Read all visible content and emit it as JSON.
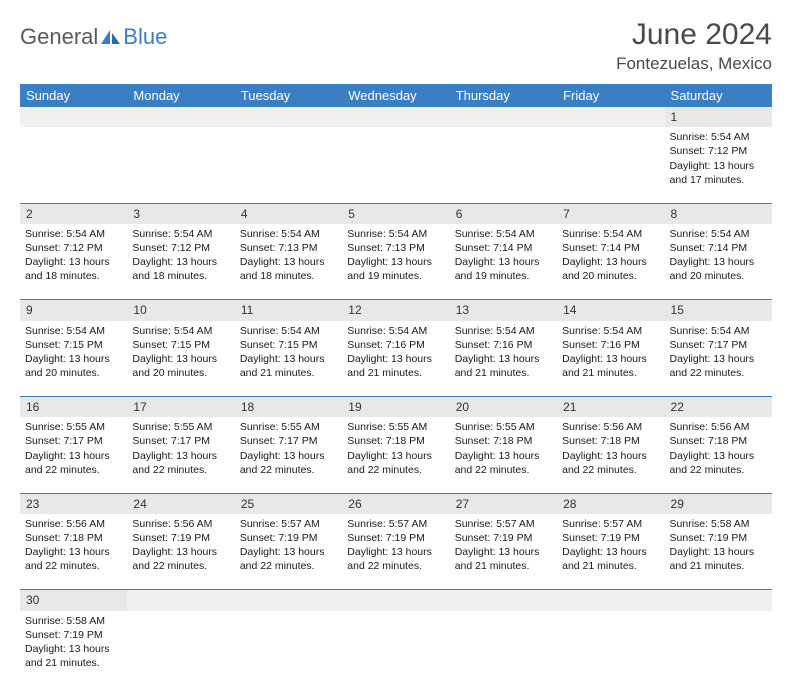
{
  "logo": {
    "textA": "General",
    "textB": "Blue"
  },
  "title": "June 2024",
  "location": "Fontezuelas, Mexico",
  "colors": {
    "header_bg": "#3a7fc4",
    "header_text": "#ffffff",
    "daynum_bg": "#e8e8e8",
    "border": "#3a7fc4",
    "logo_gray": "#5a5a5a",
    "logo_blue": "#3a7fc4",
    "title_color": "#4a4a4a"
  },
  "dayHeaders": [
    "Sunday",
    "Monday",
    "Tuesday",
    "Wednesday",
    "Thursday",
    "Friday",
    "Saturday"
  ],
  "weeks": [
    [
      null,
      null,
      null,
      null,
      null,
      null,
      {
        "n": "1",
        "sr": "5:54 AM",
        "ss": "7:12 PM",
        "dl": "13 hours and 17 minutes."
      }
    ],
    [
      {
        "n": "2",
        "sr": "5:54 AM",
        "ss": "7:12 PM",
        "dl": "13 hours and 18 minutes."
      },
      {
        "n": "3",
        "sr": "5:54 AM",
        "ss": "7:12 PM",
        "dl": "13 hours and 18 minutes."
      },
      {
        "n": "4",
        "sr": "5:54 AM",
        "ss": "7:13 PM",
        "dl": "13 hours and 18 minutes."
      },
      {
        "n": "5",
        "sr": "5:54 AM",
        "ss": "7:13 PM",
        "dl": "13 hours and 19 minutes."
      },
      {
        "n": "6",
        "sr": "5:54 AM",
        "ss": "7:14 PM",
        "dl": "13 hours and 19 minutes."
      },
      {
        "n": "7",
        "sr": "5:54 AM",
        "ss": "7:14 PM",
        "dl": "13 hours and 20 minutes."
      },
      {
        "n": "8",
        "sr": "5:54 AM",
        "ss": "7:14 PM",
        "dl": "13 hours and 20 minutes."
      }
    ],
    [
      {
        "n": "9",
        "sr": "5:54 AM",
        "ss": "7:15 PM",
        "dl": "13 hours and 20 minutes."
      },
      {
        "n": "10",
        "sr": "5:54 AM",
        "ss": "7:15 PM",
        "dl": "13 hours and 20 minutes."
      },
      {
        "n": "11",
        "sr": "5:54 AM",
        "ss": "7:15 PM",
        "dl": "13 hours and 21 minutes."
      },
      {
        "n": "12",
        "sr": "5:54 AM",
        "ss": "7:16 PM",
        "dl": "13 hours and 21 minutes."
      },
      {
        "n": "13",
        "sr": "5:54 AM",
        "ss": "7:16 PM",
        "dl": "13 hours and 21 minutes."
      },
      {
        "n": "14",
        "sr": "5:54 AM",
        "ss": "7:16 PM",
        "dl": "13 hours and 21 minutes."
      },
      {
        "n": "15",
        "sr": "5:54 AM",
        "ss": "7:17 PM",
        "dl": "13 hours and 22 minutes."
      }
    ],
    [
      {
        "n": "16",
        "sr": "5:55 AM",
        "ss": "7:17 PM",
        "dl": "13 hours and 22 minutes."
      },
      {
        "n": "17",
        "sr": "5:55 AM",
        "ss": "7:17 PM",
        "dl": "13 hours and 22 minutes."
      },
      {
        "n": "18",
        "sr": "5:55 AM",
        "ss": "7:17 PM",
        "dl": "13 hours and 22 minutes."
      },
      {
        "n": "19",
        "sr": "5:55 AM",
        "ss": "7:18 PM",
        "dl": "13 hours and 22 minutes."
      },
      {
        "n": "20",
        "sr": "5:55 AM",
        "ss": "7:18 PM",
        "dl": "13 hours and 22 minutes."
      },
      {
        "n": "21",
        "sr": "5:56 AM",
        "ss": "7:18 PM",
        "dl": "13 hours and 22 minutes."
      },
      {
        "n": "22",
        "sr": "5:56 AM",
        "ss": "7:18 PM",
        "dl": "13 hours and 22 minutes."
      }
    ],
    [
      {
        "n": "23",
        "sr": "5:56 AM",
        "ss": "7:18 PM",
        "dl": "13 hours and 22 minutes."
      },
      {
        "n": "24",
        "sr": "5:56 AM",
        "ss": "7:19 PM",
        "dl": "13 hours and 22 minutes."
      },
      {
        "n": "25",
        "sr": "5:57 AM",
        "ss": "7:19 PM",
        "dl": "13 hours and 22 minutes."
      },
      {
        "n": "26",
        "sr": "5:57 AM",
        "ss": "7:19 PM",
        "dl": "13 hours and 22 minutes."
      },
      {
        "n": "27",
        "sr": "5:57 AM",
        "ss": "7:19 PM",
        "dl": "13 hours and 21 minutes."
      },
      {
        "n": "28",
        "sr": "5:57 AM",
        "ss": "7:19 PM",
        "dl": "13 hours and 21 minutes."
      },
      {
        "n": "29",
        "sr": "5:58 AM",
        "ss": "7:19 PM",
        "dl": "13 hours and 21 minutes."
      }
    ],
    [
      {
        "n": "30",
        "sr": "5:58 AM",
        "ss": "7:19 PM",
        "dl": "13 hours and 21 minutes."
      },
      null,
      null,
      null,
      null,
      null,
      null
    ]
  ],
  "labels": {
    "sunrise": "Sunrise:",
    "sunset": "Sunset:",
    "daylight": "Daylight:"
  }
}
